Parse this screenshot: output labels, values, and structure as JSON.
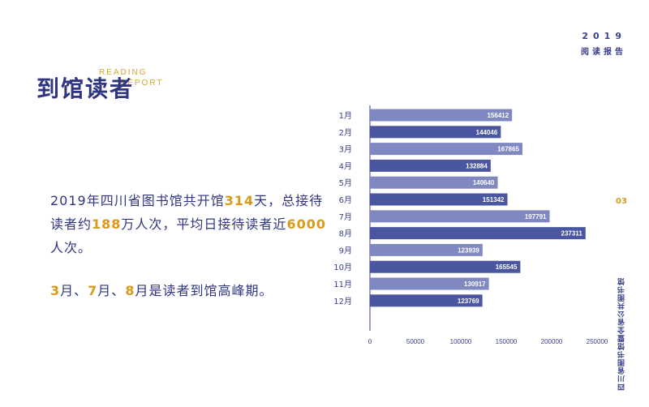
{
  "header": {
    "year": "2019",
    "report": "阅读报告"
  },
  "title": {
    "cn": "到馆读者",
    "en_line1": "READING",
    "en_line2": "REPORT"
  },
  "summary": {
    "p1": "2019年四川省图书馆共开馆",
    "days": "314",
    "p2": "天，总接待读者约",
    "visits": "188",
    "p3": "万人次，平均日接待读者近",
    "daily": "6000",
    "p4": "人次。"
  },
  "peaks": {
    "m1": "3",
    "s1": "月、",
    "m2": "7",
    "s2": "月、",
    "m3": "8",
    "s3": "月是读者到馆高峰期。"
  },
  "side": {
    "page": "03",
    "library": "四川省图书馆暨全省公共图书馆"
  },
  "colors": {
    "bar_dark": "#4a57a0",
    "bar_light": "#8088c2",
    "accent": "#d99a1a",
    "text": "#2f3580"
  },
  "chart_data": {
    "type": "bar",
    "orientation": "horizontal",
    "categories": [
      "1月",
      "2月",
      "3月",
      "4月",
      "5月",
      "6月",
      "7月",
      "8月",
      "9月",
      "10月",
      "11月",
      "12月"
    ],
    "values": [
      156412,
      144046,
      167865,
      132884,
      140640,
      151342,
      197791,
      237311,
      123939,
      165545,
      130917,
      123769
    ],
    "xlim": [
      0,
      250000
    ],
    "xticks": [
      "0",
      "50000",
      "100000",
      "150000",
      "200000",
      "250000"
    ],
    "title": "",
    "xlabel": "",
    "ylabel": "",
    "grid": false,
    "data_labels": true
  }
}
